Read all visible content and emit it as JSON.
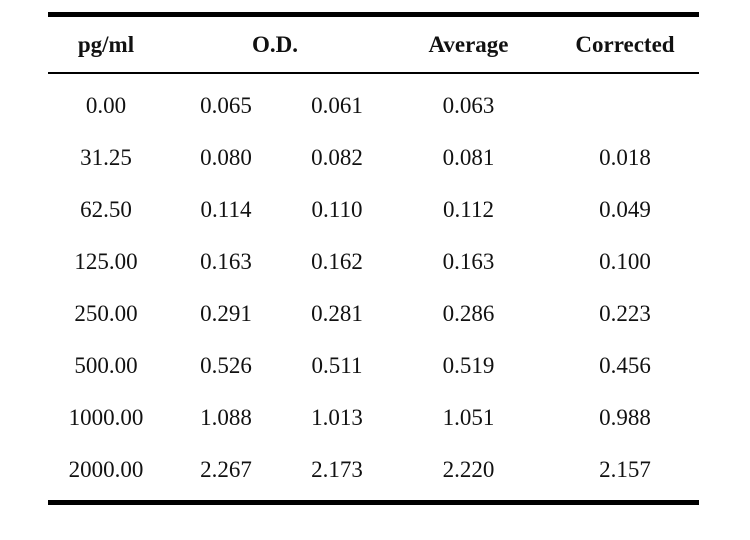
{
  "table": {
    "headers": {
      "concentration": "pg/ml",
      "od": "O.D.",
      "average": "Average",
      "corrected": "Corrected"
    },
    "rows": [
      {
        "conc": "0.00",
        "od1": "0.065",
        "od2": "0.061",
        "avg": "0.063",
        "corrected": ""
      },
      {
        "conc": "31.25",
        "od1": "0.080",
        "od2": "0.082",
        "avg": "0.081",
        "corrected": "0.018"
      },
      {
        "conc": "62.50",
        "od1": "0.114",
        "od2": "0.110",
        "avg": "0.112",
        "corrected": "0.049"
      },
      {
        "conc": "125.00",
        "od1": "0.163",
        "od2": "0.162",
        "avg": "0.163",
        "corrected": "0.100"
      },
      {
        "conc": "250.00",
        "od1": "0.291",
        "od2": "0.281",
        "avg": "0.286",
        "corrected": "0.223"
      },
      {
        "conc": "500.00",
        "od1": "0.526",
        "od2": "0.511",
        "avg": "0.519",
        "corrected": "0.456"
      },
      {
        "conc": "1000.00",
        "od1": "1.088",
        "od2": "1.013",
        "avg": "1.051",
        "corrected": "0.988"
      },
      {
        "conc": "2000.00",
        "od1": "2.267",
        "od2": "2.173",
        "avg": "2.220",
        "corrected": "2.157"
      }
    ]
  }
}
